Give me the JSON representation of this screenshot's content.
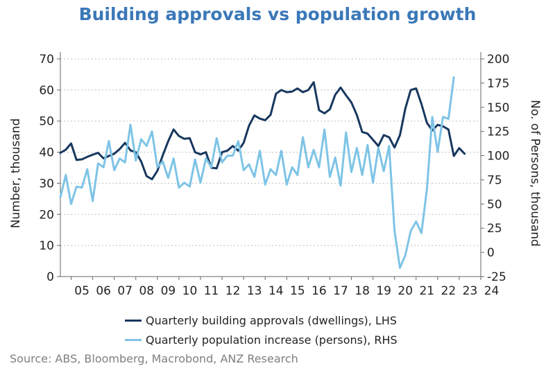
{
  "chart_data": {
    "type": "line",
    "title": "Building approvals vs population growth",
    "source": "Source: ABS, Bloomberg, Macrobond, ANZ Research",
    "xticks": [
      "05",
      "06",
      "07",
      "08",
      "09",
      "10",
      "11",
      "12",
      "13",
      "14",
      "15",
      "16",
      "17",
      "18",
      "19",
      "20",
      "21",
      "22",
      "23",
      "24"
    ],
    "y_left": {
      "label": "Number, thousand",
      "range": [
        0,
        70
      ],
      "ticks": [
        0,
        10,
        20,
        30,
        40,
        50,
        60,
        70
      ]
    },
    "y_right": {
      "label": "No. of Persons, thousand",
      "range": [
        -25,
        200
      ],
      "ticks": [
        -25,
        0,
        25,
        50,
        75,
        100,
        125,
        150,
        175,
        200
      ]
    },
    "grid": "horizontal dotted",
    "legend_position": "bottom",
    "series": [
      {
        "name": "Quarterly building approvals (dwellings), LHS",
        "axis": "left",
        "color": "#17375e",
        "x_start": 2004.5,
        "x_step": 0.25,
        "values": [
          39.8,
          40.8,
          42.8,
          37.5,
          37.7,
          38.5,
          39.2,
          39.8,
          38.0,
          38.8,
          39.5,
          41.0,
          43.0,
          40.6,
          40.0,
          37.0,
          32.3,
          31.3,
          34.0,
          39.0,
          43.5,
          47.3,
          45.2,
          44.3,
          44.5,
          40.0,
          39.3,
          40.0,
          35.0,
          34.8,
          40.0,
          40.5,
          42.0,
          40.5,
          43.0,
          48.5,
          51.8,
          50.8,
          50.3,
          52.0,
          58.8,
          60.0,
          59.3,
          59.5,
          60.5,
          59.3,
          60.0,
          62.5,
          53.5,
          52.5,
          53.8,
          58.5,
          60.8,
          58.3,
          56.0,
          52.0,
          46.5,
          46.0,
          44.0,
          42.0,
          45.5,
          44.8,
          41.5,
          45.5,
          54.0,
          60.0,
          60.5,
          55.5,
          49.5,
          47.0,
          48.8,
          48.3,
          47.3,
          38.8,
          41.3,
          39.5
        ]
      },
      {
        "name": "Quarterly population increase (persons), RHS",
        "axis": "right",
        "color": "#7ec4e6",
        "x_start": 2004.5,
        "x_step": 0.25,
        "values": [
          57,
          80,
          50,
          68,
          67,
          86,
          53,
          92,
          88,
          115,
          85,
          97,
          93,
          132,
          95,
          117,
          110,
          125,
          88,
          94,
          77,
          97,
          67,
          72,
          68,
          96,
          72,
          97,
          88,
          118,
          93,
          100,
          100,
          115,
          85,
          91,
          78,
          105,
          70,
          86,
          80,
          105,
          70,
          88,
          80,
          119,
          88,
          106,
          88,
          127,
          78,
          98,
          69,
          124,
          83,
          108,
          80,
          111,
          72,
          108,
          84,
          110,
          22,
          -16,
          -3,
          22,
          32,
          20,
          65,
          140,
          104,
          140,
          138,
          181
        ]
      }
    ]
  }
}
